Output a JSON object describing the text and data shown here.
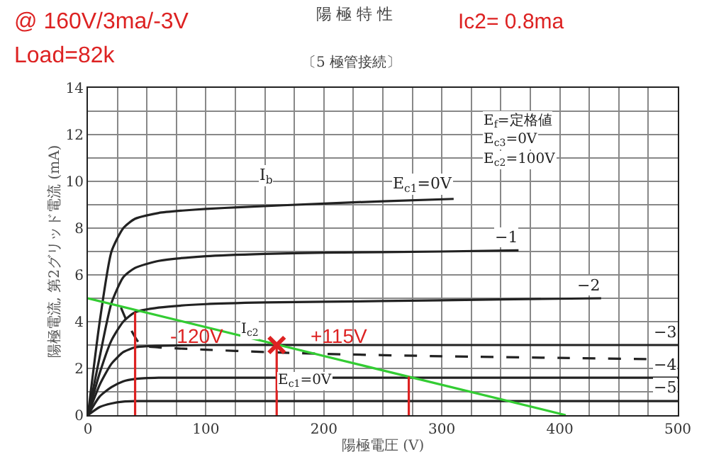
{
  "chart_data": {
    "type": "line",
    "title": "陽 極 特 性",
    "subtitle": "〔5 極管接続〕",
    "xlabel": "陽極電圧 (V)",
    "ylabel": "陽極電流, 第2グリッド電流 (mA)",
    "xlim": [
      0,
      500
    ],
    "ylim": [
      0,
      14
    ],
    "grid": true,
    "legend": false,
    "marker": "none",
    "line_style": "solid",
    "xticks": [
      0,
      {
        "value": 25,
        "label": null
      },
      {
        "value": 50,
        "label": null
      },
      {
        "value": 75,
        "label": null
      },
      100,
      {
        "value": 125,
        "label": null
      },
      {
        "value": 150,
        "label": null
      },
      {
        "value": 175,
        "label": null
      },
      200,
      {
        "value": 225,
        "label": null
      },
      {
        "value": 250,
        "label": null
      },
      {
        "value": 275,
        "label": null
      },
      300,
      {
        "value": 325,
        "label": null
      },
      {
        "value": 350,
        "label": null
      },
      {
        "value": 375,
        "label": null
      },
      400,
      {
        "value": 425,
        "label": null
      },
      {
        "value": 450,
        "label": null
      },
      {
        "value": 475,
        "label": null
      },
      500
    ],
    "yticks": [
      0,
      {
        "value": 1,
        "label": null
      },
      2,
      {
        "value": 3,
        "label": null
      },
      4,
      {
        "value": 5,
        "label": null
      },
      6,
      {
        "value": 7,
        "label": null
      },
      8,
      {
        "value": 9,
        "label": null
      },
      10,
      {
        "value": 11,
        "label": null
      },
      12,
      {
        "value": 13,
        "label": null
      },
      14
    ],
    "series": [
      {
        "name": "E$_{c1}$=0V",
        "color": "#222222",
        "x": [
          0,
          10,
          20,
          30,
          40,
          60,
          80,
          100,
          130,
          200,
          250,
          310
        ],
        "values": [
          0,
          4.0,
          7.0,
          8.0,
          8.4,
          8.65,
          8.75,
          8.82,
          8.9,
          9.05,
          9.15,
          9.25
        ]
      },
      {
        "name": "−1",
        "color": "#222222",
        "x": [
          0,
          10,
          20,
          30,
          40,
          60,
          100,
          150,
          200,
          300,
          365
        ],
        "values": [
          0,
          2.5,
          4.8,
          5.9,
          6.3,
          6.6,
          6.8,
          6.9,
          6.95,
          7.0,
          7.05
        ]
      },
      {
        "name": "−2",
        "color": "#222222",
        "x": [
          0,
          10,
          20,
          30,
          40,
          60,
          100,
          150,
          250,
          350,
          435
        ],
        "values": [
          0,
          1.8,
          3.2,
          4.0,
          4.4,
          4.6,
          4.75,
          4.82,
          4.88,
          4.95,
          5.0
        ]
      },
      {
        "name": "−3",
        "color": "#222222",
        "x": [
          0,
          10,
          20,
          30,
          40,
          50,
          100,
          200,
          300,
          400,
          500
        ],
        "values": [
          0,
          1.3,
          2.2,
          2.7,
          2.9,
          2.95,
          3.0,
          3.0,
          3.0,
          3.0,
          3.0
        ]
      },
      {
        "name": "−4",
        "color": "#222222",
        "x": [
          0,
          10,
          20,
          30,
          40,
          60,
          100,
          500
        ],
        "values": [
          0,
          0.8,
          1.2,
          1.45,
          1.55,
          1.6,
          1.6,
          1.6
        ]
      },
      {
        "name": "−5",
        "color": "#222222",
        "x": [
          0,
          10,
          20,
          30,
          40,
          100,
          500
        ],
        "values": [
          0,
          0.35,
          0.5,
          0.58,
          0.6,
          0.6,
          0.6
        ]
      },
      {
        "color": "#222222",
        "line_style": "dashed",
        "x": [
          28,
          35,
          45,
          60,
          100,
          150,
          200,
          300,
          400,
          500
        ],
        "values": [
          4.6,
          3.8,
          3.0,
          2.9,
          2.8,
          2.7,
          2.62,
          2.52,
          2.45,
          2.38
        ]
      },
      {
        "color": "#33cc33",
        "x": [
          0,
          405
        ],
        "values": [
          5,
          0
        ]
      },
      {
        "color": "#dd2222",
        "x": [
          40,
          40
        ],
        "values": [
          0,
          4.4
        ]
      },
      {
        "color": "#dd2222",
        "x": [
          160,
          160
        ],
        "values": [
          0,
          3.0
        ]
      },
      {
        "color": "#dd2222",
        "x": [
          272,
          272
        ],
        "values": [
          0,
          1.65
        ]
      },
      {
        "type": "scatter",
        "marker": "cross",
        "color": "#dd2222",
        "x": [
          160
        ],
        "values": [
          3.0
        ]
      }
    ],
    "annotations": [
      "@ 160V/3ma/-3V",
      "Load=82k",
      "Ic2= 0.8ma",
      "E$_{f}$=定格値",
      "E$_{c3}$=0V",
      "E$_{c2}$=100V",
      "I$_{b}$",
      "E$_{c1}$=0V",
      "I$_{c2}$",
      "-120V",
      "+115V"
    ]
  }
}
